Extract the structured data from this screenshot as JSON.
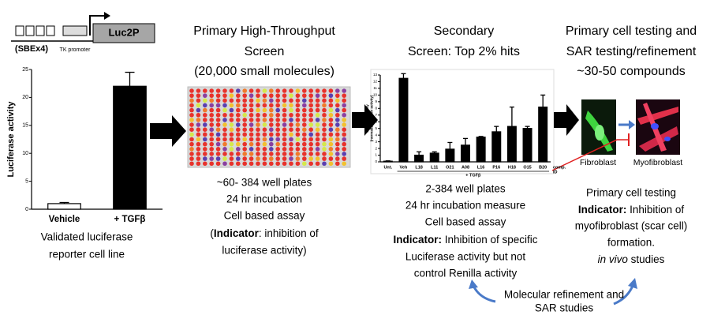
{
  "construct": {
    "enhancer": "(SBEx4)",
    "promoter": "TK promoter",
    "reporter": "Luc2P"
  },
  "chart_data": [
    {
      "type": "bar",
      "y_label": [
        "Luciferase activity"
      ],
      "categories": [
        "Vehicle",
        "+ TGFβ"
      ],
      "values": [
        1,
        22
      ],
      "errors": [
        0.2,
        2.5
      ],
      "colors": [
        "#ffffff",
        "#000000"
      ],
      "ylim": [
        0,
        25
      ],
      "yticks": [
        0,
        5,
        10,
        15,
        20,
        25
      ]
    },
    {
      "type": "bar",
      "y_label": [
        "SBE-Luc activity",
        "(normalized to Ren activity)"
      ],
      "categories": [
        "Unt.",
        "Veh",
        "L18",
        "L11",
        "O21",
        "A08",
        "L16",
        "P16",
        "H18",
        "O15",
        "B20"
      ],
      "values": [
        0.1,
        12.5,
        1.0,
        1.3,
        1.9,
        2.5,
        3.7,
        4.5,
        5.3,
        5.0,
        8.2
      ],
      "errors": [
        0.05,
        0.7,
        0.5,
        0.2,
        1.0,
        1.0,
        0.1,
        0.8,
        2.9,
        0.3,
        1.8
      ],
      "colors": [
        "#000000",
        "#000000",
        "#000000",
        "#000000",
        "#000000",
        "#000000",
        "#000000",
        "#000000",
        "#000000",
        "#000000",
        "#000000"
      ],
      "group_label": "+ TGFβ",
      "extra_label": [
        "comp.",
        "ID"
      ],
      "ylim": [
        0,
        13
      ],
      "yticks": [
        0,
        1,
        2,
        3,
        4,
        5,
        6,
        7,
        8,
        9,
        10,
        11,
        12,
        13
      ]
    }
  ],
  "reporter_caption": [
    "Validated luciferase",
    "reporter cell line"
  ],
  "primary_screen": {
    "title": [
      "Primary High-Throughput",
      "Screen",
      "(20,000 small molecules)"
    ],
    "lines": [
      "~60- 384 well plates",
      "24 hr incubation",
      "Cell based assay",
      {
        "pre": "(",
        "bold": "Indicator",
        "post": ": inhibition of"
      },
      "luciferase activity)"
    ]
  },
  "secondary_screen": {
    "title": [
      "Secondary",
      "Screen: Top 2% hits"
    ],
    "lines": [
      "2-384 well plates",
      "24 hr incubation measure",
      "Cell based assay",
      {
        "bold": "Indicator:",
        "post": " Inhibition of specific"
      },
      "Luciferase activity but not",
      "control Renilla activity"
    ]
  },
  "cell_testing": {
    "title": [
      "Primary cell testing and",
      "SAR testing/refinement",
      "~30-50 compounds"
    ],
    "cells": [
      "Fibroblast",
      "Myofibroblast"
    ],
    "lines": [
      "Primary cell testing",
      {
        "bold": "Indicator:",
        "post": " Inhibition of"
      },
      "myofibroblast (scar cell)",
      "formation.",
      {
        "italic": "in vivo",
        "post": " studies"
      }
    ]
  },
  "refinement": [
    "Molecular refinement and",
    "SAR studies"
  ]
}
